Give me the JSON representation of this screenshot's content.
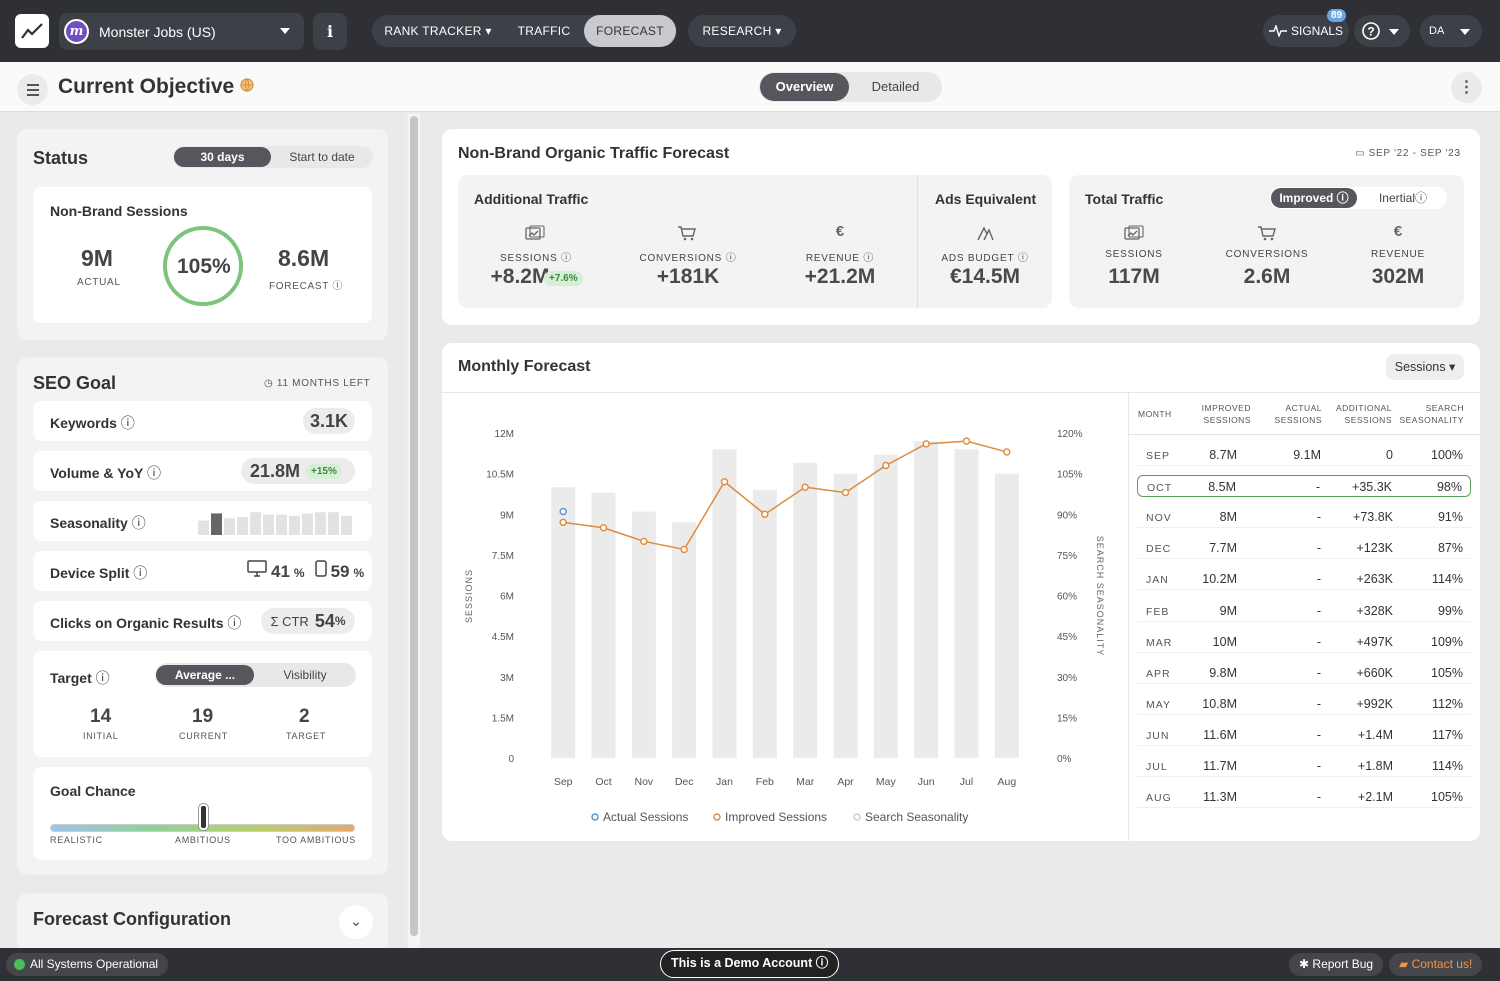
{
  "topbar": {
    "account_name": "Monster Jobs (US)",
    "account_initial": "m",
    "info_label": "i",
    "nav": [
      "RANK TRACKER",
      "TRAFFIC",
      "FORECAST",
      "RESEARCH"
    ],
    "signals_label": "SIGNALS",
    "signals_count": "89",
    "user_initials": "DA"
  },
  "subbar": {
    "title": "Current Objective",
    "view_overview": "Overview",
    "view_detailed": "Detailed"
  },
  "status": {
    "title": "Status",
    "toggle_on": "30 days",
    "toggle_off": "Start to date",
    "section_label": "Non-Brand Sessions",
    "actual_value": "9M",
    "actual_label": "ACTUAL",
    "percent": "105%",
    "forecast_value": "8.6M",
    "forecast_label": "FORECAST"
  },
  "seo_goal": {
    "title": "SEO Goal",
    "months_left": "11 MONTHS LEFT",
    "keywords_label": "Keywords",
    "keywords_value": "3.1K",
    "volume_label": "Volume & YoY",
    "volume_value": "21.8M",
    "volume_change": "+15%",
    "seasonality_label": "Seasonality",
    "device_label": "Device Split",
    "desktop_pct": "41",
    "mobile_pct": "59",
    "pct_sign": "%",
    "clicks_label": "Clicks on Organic Results",
    "ctr_prefix": "Σ CTR",
    "ctr_value": "54",
    "target_label": "Target",
    "target_toggle_on": "Average ...",
    "target_toggle_off": "Visibility",
    "initial_value": "14",
    "initial_label": "INITIAL",
    "current_value": "19",
    "current_label": "CURRENT",
    "target_value": "2",
    "target_value_label": "TARGET",
    "goal_chance_label": "Goal Chance",
    "scale_left": "REALISTIC",
    "scale_mid": "AMBITIOUS",
    "scale_right": "TOO AMBITIOUS"
  },
  "seasonality_bars": [
    0.6,
    0.9,
    0.7,
    0.75,
    0.95,
    0.85,
    0.85,
    0.8,
    0.9,
    0.95,
    0.95,
    0.8
  ],
  "forecast_config": {
    "title": "Forecast Configuration"
  },
  "traffic_forecast": {
    "title": "Non-Brand Organic Traffic Forecast",
    "date_range": "SEP '22 - SEP '23",
    "additional_title": "Additional Traffic",
    "sessions_label": "SESSIONS",
    "sessions_value": "+8.2M",
    "sessions_change": "+7.6%",
    "conversions_label": "CONVERSIONS",
    "conversions_value": "+181K",
    "revenue_label": "REVENUE",
    "revenue_value": "+21.2M",
    "ads_title": "Ads Equivalent",
    "ads_label": "ADS BUDGET",
    "ads_value": "€14.5M",
    "total_title": "Total Traffic",
    "toggle_on": "Improved",
    "toggle_off": "Inertial",
    "total_sessions_label": "SESSIONS",
    "total_sessions_value": "117M",
    "total_conversions_label": "CONVERSIONS",
    "total_conversions_value": "2.6M",
    "total_revenue_label": "REVENUE",
    "total_revenue_value": "302M",
    "euro_icon": "€"
  },
  "monthly": {
    "title": "Monthly Forecast",
    "dropdown": "Sessions",
    "table_headers": [
      "MONTH",
      "IMPROVED SESSIONS",
      "ACTUAL SESSIONS",
      "ADDITIONAL SESSIONS",
      "SEARCH SEASONALITY"
    ],
    "rows": [
      {
        "month": "SEP",
        "improved": "8.7M",
        "actual": "9.1M",
        "additional": "0",
        "season": "100%"
      },
      {
        "month": "OCT",
        "improved": "8.5M",
        "actual": "-",
        "additional": "+35.3K",
        "season": "98%"
      },
      {
        "month": "NOV",
        "improved": "8M",
        "actual": "-",
        "additional": "+73.8K",
        "season": "91%"
      },
      {
        "month": "DEC",
        "improved": "7.7M",
        "actual": "-",
        "additional": "+123K",
        "season": "87%"
      },
      {
        "month": "JAN",
        "improved": "10.2M",
        "actual": "-",
        "additional": "+263K",
        "season": "114%"
      },
      {
        "month": "FEB",
        "improved": "9M",
        "actual": "-",
        "additional": "+328K",
        "season": "99%"
      },
      {
        "month": "MAR",
        "improved": "10M",
        "actual": "-",
        "additional": "+497K",
        "season": "109%"
      },
      {
        "month": "APR",
        "improved": "9.8M",
        "actual": "-",
        "additional": "+660K",
        "season": "105%"
      },
      {
        "month": "MAY",
        "improved": "10.8M",
        "actual": "-",
        "additional": "+992K",
        "season": "112%"
      },
      {
        "month": "JUN",
        "improved": "11.6M",
        "actual": "-",
        "additional": "+1.4M",
        "season": "117%"
      },
      {
        "month": "JUL",
        "improved": "11.7M",
        "actual": "-",
        "additional": "+1.8M",
        "season": "114%"
      },
      {
        "month": "AUG",
        "improved": "11.3M",
        "actual": "-",
        "additional": "+2.1M",
        "season": "105%"
      }
    ]
  },
  "chart_data": {
    "type": "bar",
    "categories": [
      "Sep",
      "Oct",
      "Nov",
      "Dec",
      "Jan",
      "Feb",
      "Mar",
      "Apr",
      "May",
      "Jun",
      "Jul",
      "Aug"
    ],
    "series": [
      {
        "name": "Search Seasonality",
        "type": "bar",
        "axis": "right",
        "values": [
          100,
          98,
          91,
          87,
          114,
          99,
          109,
          105,
          112,
          117,
          114,
          105
        ]
      },
      {
        "name": "Improved Sessions",
        "type": "line",
        "axis": "left",
        "values": [
          8.7,
          8.5,
          8.0,
          7.7,
          10.2,
          9.0,
          10.0,
          9.8,
          10.8,
          11.6,
          11.7,
          11.3
        ]
      },
      {
        "name": "Actual Sessions",
        "type": "point",
        "axis": "left",
        "values": [
          9.1,
          null,
          null,
          null,
          null,
          null,
          null,
          null,
          null,
          null,
          null,
          null
        ]
      }
    ],
    "yticks_left": [
      "0",
      "1.5M",
      "3M",
      "4.5M",
      "6M",
      "7.5M",
      "9M",
      "10.5M",
      "12M"
    ],
    "yticks_right": [
      "0%",
      "15%",
      "30%",
      "45%",
      "60%",
      "75%",
      "90%",
      "105%",
      "120%"
    ],
    "ylim_left": [
      0,
      12
    ],
    "ylim_right": [
      0,
      120
    ],
    "ylabel_left": "SESSIONS",
    "ylabel_right": "SEARCH SEASONALITY",
    "legend": [
      "Actual Sessions",
      "Improved Sessions",
      "Search Seasonality"
    ],
    "legend_position": "bottom"
  },
  "colors": {
    "accent_orange": "#e08a3c",
    "bar_gray": "#ebebeb",
    "dark": "#2e3035",
    "green": "#6dbe6d",
    "blue": "#5a8fd0"
  },
  "footer": {
    "status": "All Systems Operational",
    "demo": "This is a Demo Account",
    "report_bug": "Report Bug",
    "contact": "Contact us!"
  }
}
